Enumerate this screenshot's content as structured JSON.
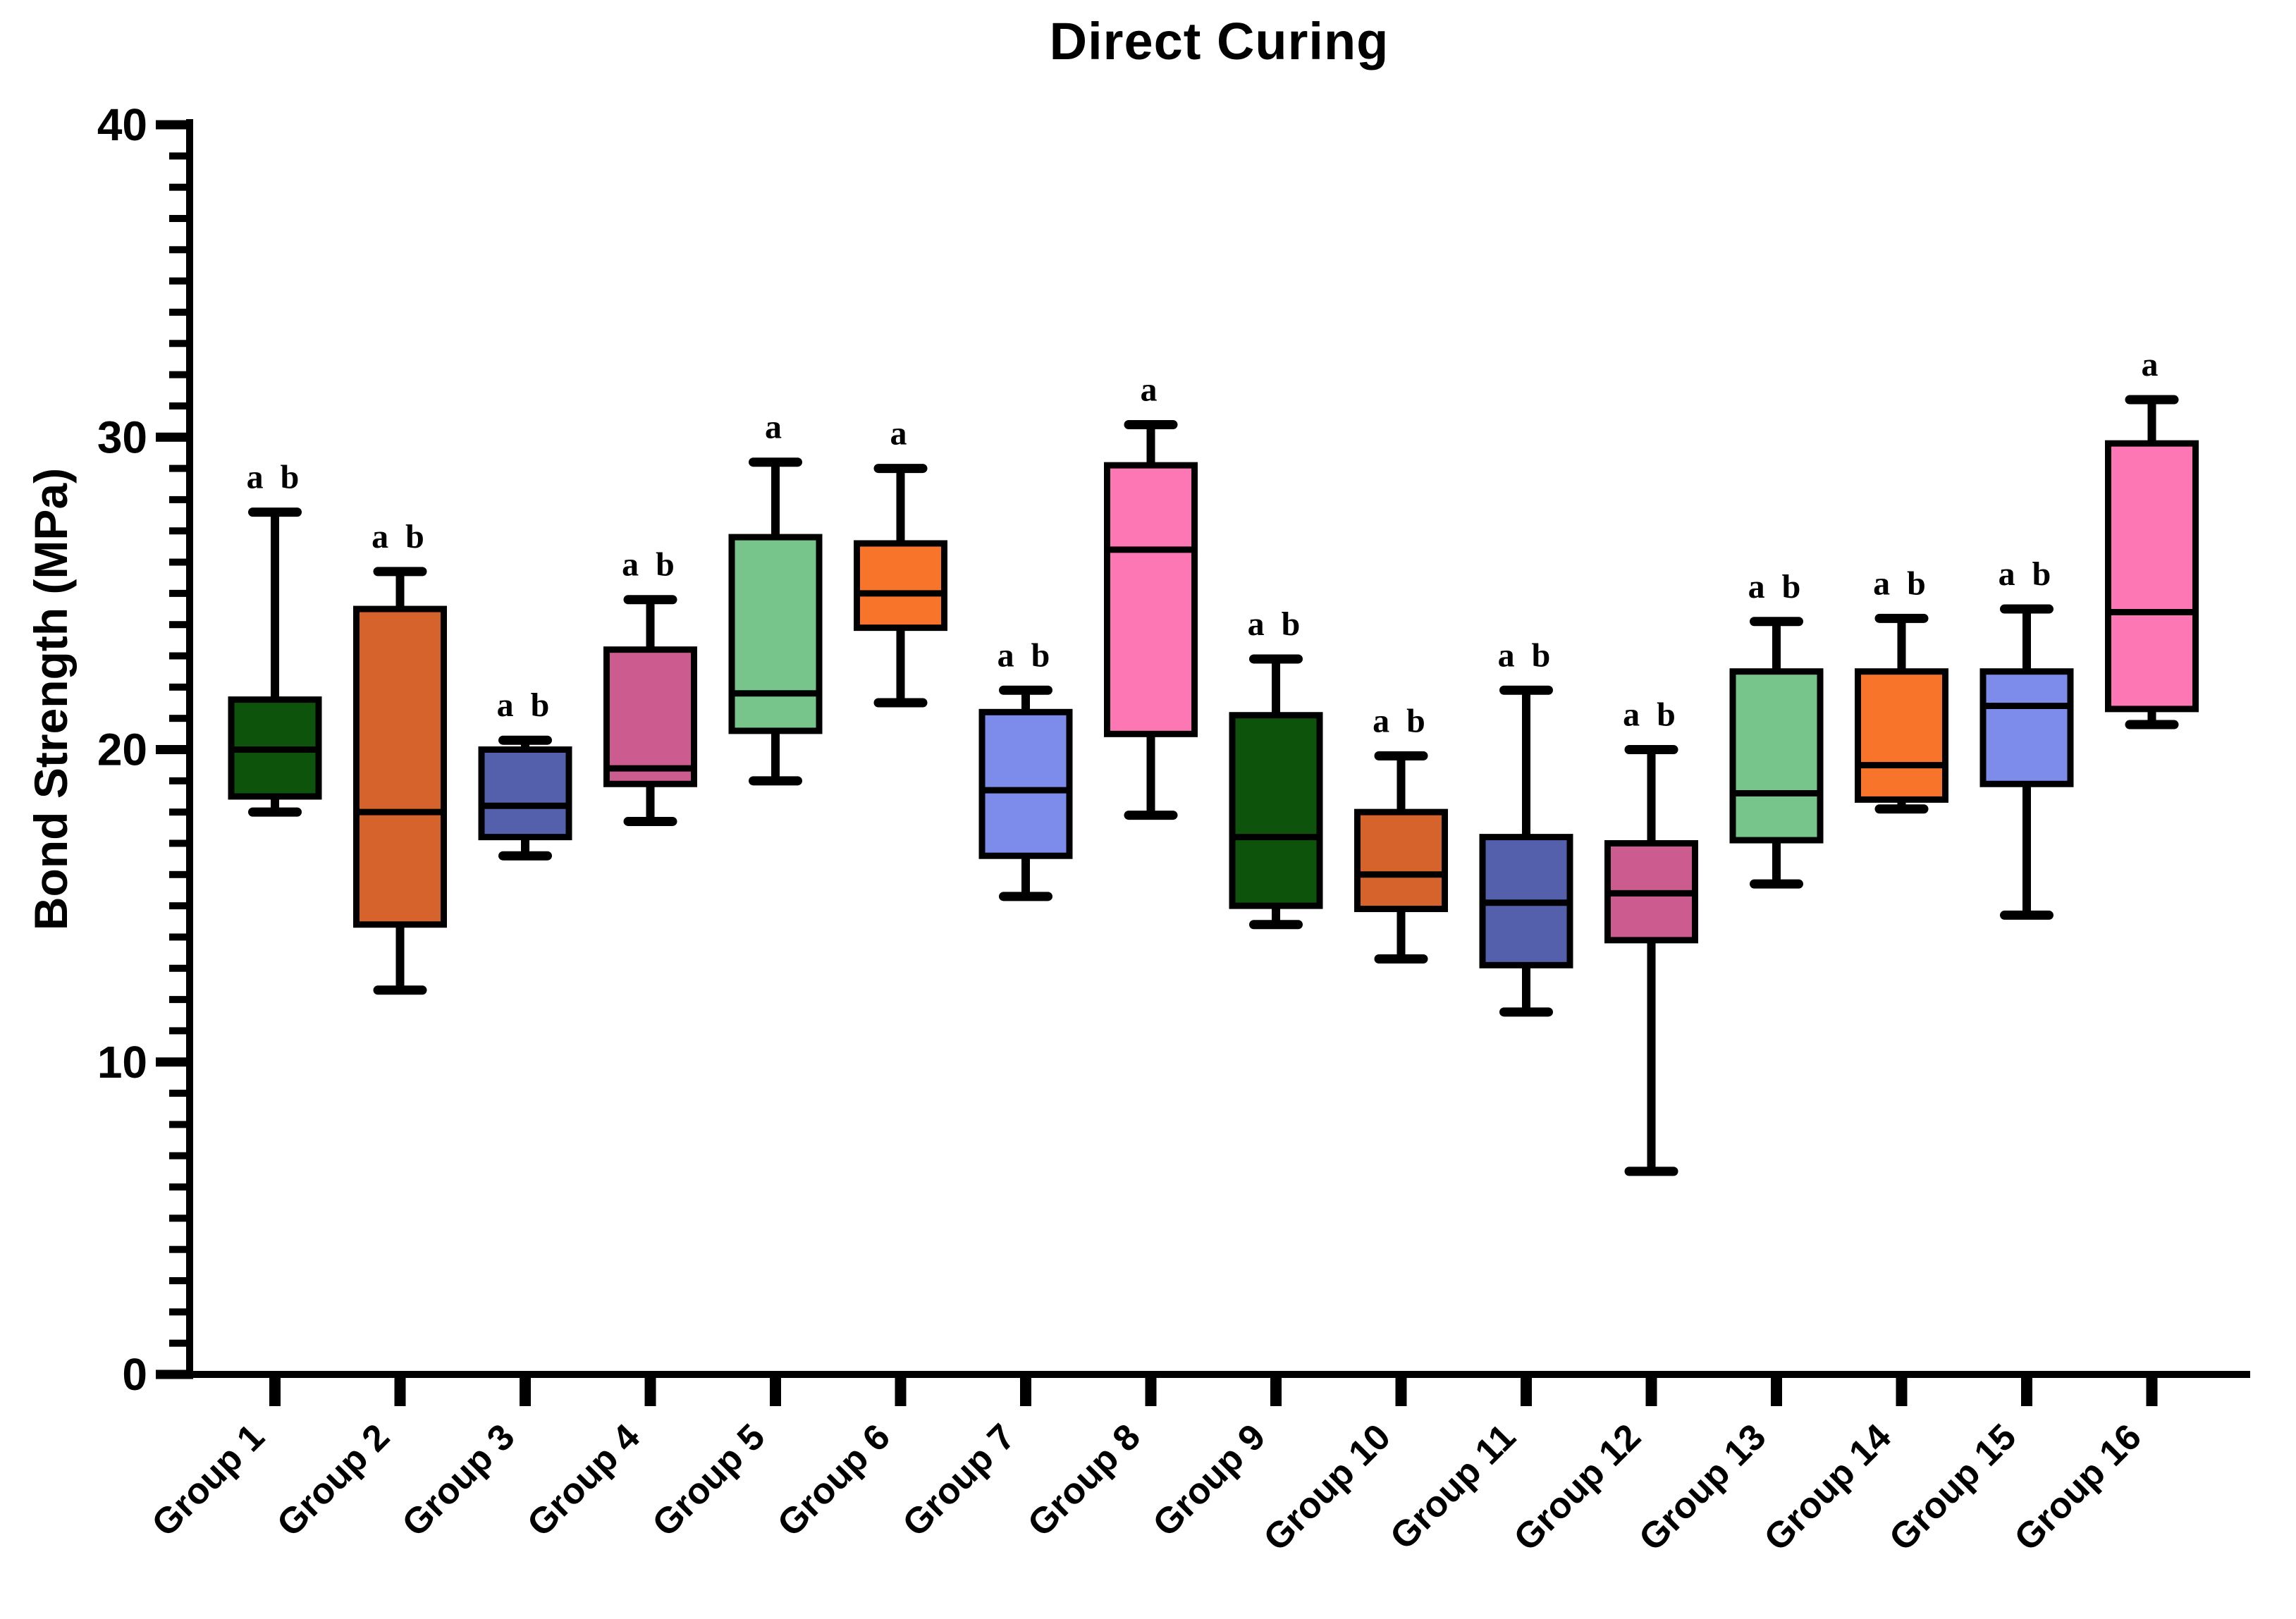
{
  "title": "Direct Curing",
  "y_axis": {
    "label": "Bond Strength (MPa)",
    "tick_labels": [
      "0",
      "10",
      "20",
      "30",
      "40"
    ]
  },
  "chart_data": {
    "type": "boxplot",
    "title": "Direct Curing",
    "xlabel": "",
    "ylabel": "Bond Strength (MPa)",
    "ylim": [
      0,
      40
    ],
    "yticks": [
      0,
      10,
      20,
      30,
      40
    ],
    "minor_tick_step": 1,
    "grid": false,
    "legend": "none",
    "categories": [
      "Group 1",
      "Group 2",
      "Group 3",
      "Group 4",
      "Group 5",
      "Group 6",
      "Group 7",
      "Group 8",
      "Group 9",
      "Group 10",
      "Group 11",
      "Group 12",
      "Group 13",
      "Group 14",
      "Group 15",
      "Group 16"
    ],
    "boxes": [
      {
        "label": "Group 1",
        "annotation": "a b",
        "color": "#0e530b",
        "whisker_low": 18.0,
        "q1": 18.5,
        "median": 20.0,
        "q3": 21.6,
        "whisker_high": 27.6
      },
      {
        "label": "Group 2",
        "annotation": "a b",
        "color": "#d6622c",
        "whisker_low": 12.3,
        "q1": 14.4,
        "median": 18.0,
        "q3": 24.5,
        "whisker_high": 25.7
      },
      {
        "label": "Group 3",
        "annotation": "a b",
        "color": "#5560ad",
        "whisker_low": 16.6,
        "q1": 17.2,
        "median": 18.2,
        "q3": 20.0,
        "whisker_high": 20.3
      },
      {
        "label": "Group 4",
        "annotation": "a b",
        "color": "#cc5c90",
        "whisker_low": 17.7,
        "q1": 18.9,
        "median": 19.4,
        "q3": 23.2,
        "whisker_high": 24.8
      },
      {
        "label": "Group 5",
        "annotation": "a",
        "color": "#78c58b",
        "whisker_low": 19.0,
        "q1": 20.6,
        "median": 21.8,
        "q3": 26.8,
        "whisker_high": 29.2
      },
      {
        "label": "Group 6",
        "annotation": "a",
        "color": "#f8742a",
        "whisker_low": 21.5,
        "q1": 23.9,
        "median": 25.0,
        "q3": 26.6,
        "whisker_high": 29.0
      },
      {
        "label": "Group 7",
        "annotation": "a b",
        "color": "#7d8bea",
        "whisker_low": 15.3,
        "q1": 16.6,
        "median": 18.7,
        "q3": 21.2,
        "whisker_high": 21.9
      },
      {
        "label": "Group 8",
        "annotation": "a",
        "color": "#fc77b3",
        "whisker_low": 17.9,
        "q1": 20.5,
        "median": 26.4,
        "q3": 29.1,
        "whisker_high": 30.4
      },
      {
        "label": "Group 9",
        "annotation": "a b",
        "color": "#0e530b",
        "whisker_low": 14.4,
        "q1": 15.0,
        "median": 17.2,
        "q3": 21.1,
        "whisker_high": 22.9
      },
      {
        "label": "Group 10",
        "annotation": "a b",
        "color": "#d6622c",
        "whisker_low": 13.3,
        "q1": 14.9,
        "median": 16.0,
        "q3": 18.0,
        "whisker_high": 19.8
      },
      {
        "label": "Group 11",
        "annotation": "a b",
        "color": "#5560ad",
        "whisker_low": 11.6,
        "q1": 13.1,
        "median": 15.1,
        "q3": 17.2,
        "whisker_high": 21.9
      },
      {
        "label": "Group 12",
        "annotation": "a b",
        "color": "#cc5c90",
        "whisker_low": 6.5,
        "q1": 13.9,
        "median": 15.4,
        "q3": 17.0,
        "whisker_high": 20.0
      },
      {
        "label": "Group 13",
        "annotation": "a b",
        "color": "#78c58b",
        "whisker_low": 15.7,
        "q1": 17.1,
        "median": 18.6,
        "q3": 22.5,
        "whisker_high": 24.1
      },
      {
        "label": "Group 14",
        "annotation": "a b",
        "color": "#f8742a",
        "whisker_low": 18.1,
        "q1": 18.4,
        "median": 19.5,
        "q3": 22.5,
        "whisker_high": 24.2
      },
      {
        "label": "Group 15",
        "annotation": "a b",
        "color": "#7d8bea",
        "whisker_low": 14.7,
        "q1": 18.9,
        "median": 21.4,
        "q3": 22.5,
        "whisker_high": 24.5
      },
      {
        "label": "Group 16",
        "annotation": "a",
        "color": "#fc77b3",
        "whisker_low": 20.8,
        "q1": 21.3,
        "median": 24.4,
        "q3": 29.8,
        "whisker_high": 31.2
      }
    ],
    "axis_color": "#000000",
    "annotation_note": "statistical significance letters shown above each box"
  }
}
